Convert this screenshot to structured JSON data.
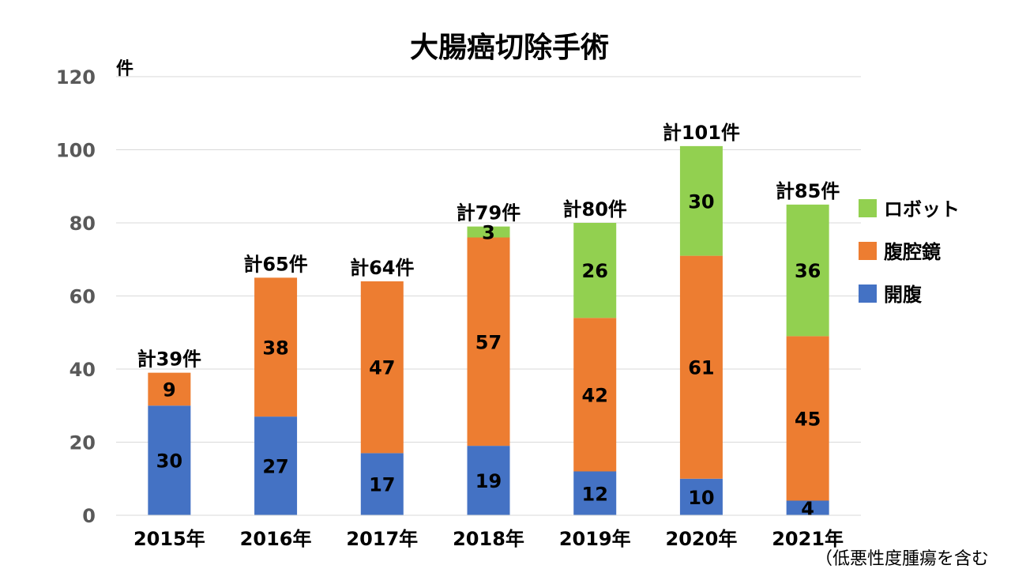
{
  "chart_data": {
    "type": "bar",
    "stacked": true,
    "title": "大腸癌切除手術",
    "ylabel": "件",
    "xlabel": "",
    "categories": [
      "2015年",
      "2016年",
      "2017年",
      "2018年",
      "2019年",
      "2020年",
      "2021年"
    ],
    "series": [
      {
        "name": "開腹",
        "color": "#4472C4",
        "values": [
          30,
          27,
          17,
          19,
          12,
          10,
          4
        ]
      },
      {
        "name": "腹腔鏡",
        "color": "#ED7D31",
        "values": [
          9,
          38,
          47,
          57,
          42,
          61,
          45
        ]
      },
      {
        "name": "ロボット",
        "color": "#92D050",
        "values": [
          null,
          null,
          null,
          3,
          26,
          30,
          36
        ]
      }
    ],
    "totals": [
      "計39件",
      "計65件",
      "計64件",
      "計79件",
      "計80件",
      "計101件",
      "計85件"
    ],
    "ylim": [
      0,
      120
    ],
    "yticks": [
      0,
      20,
      40,
      60,
      80,
      100,
      120
    ],
    "grid": true,
    "legend_position": "right",
    "note": "（低悪性度腫瘍を含む"
  }
}
